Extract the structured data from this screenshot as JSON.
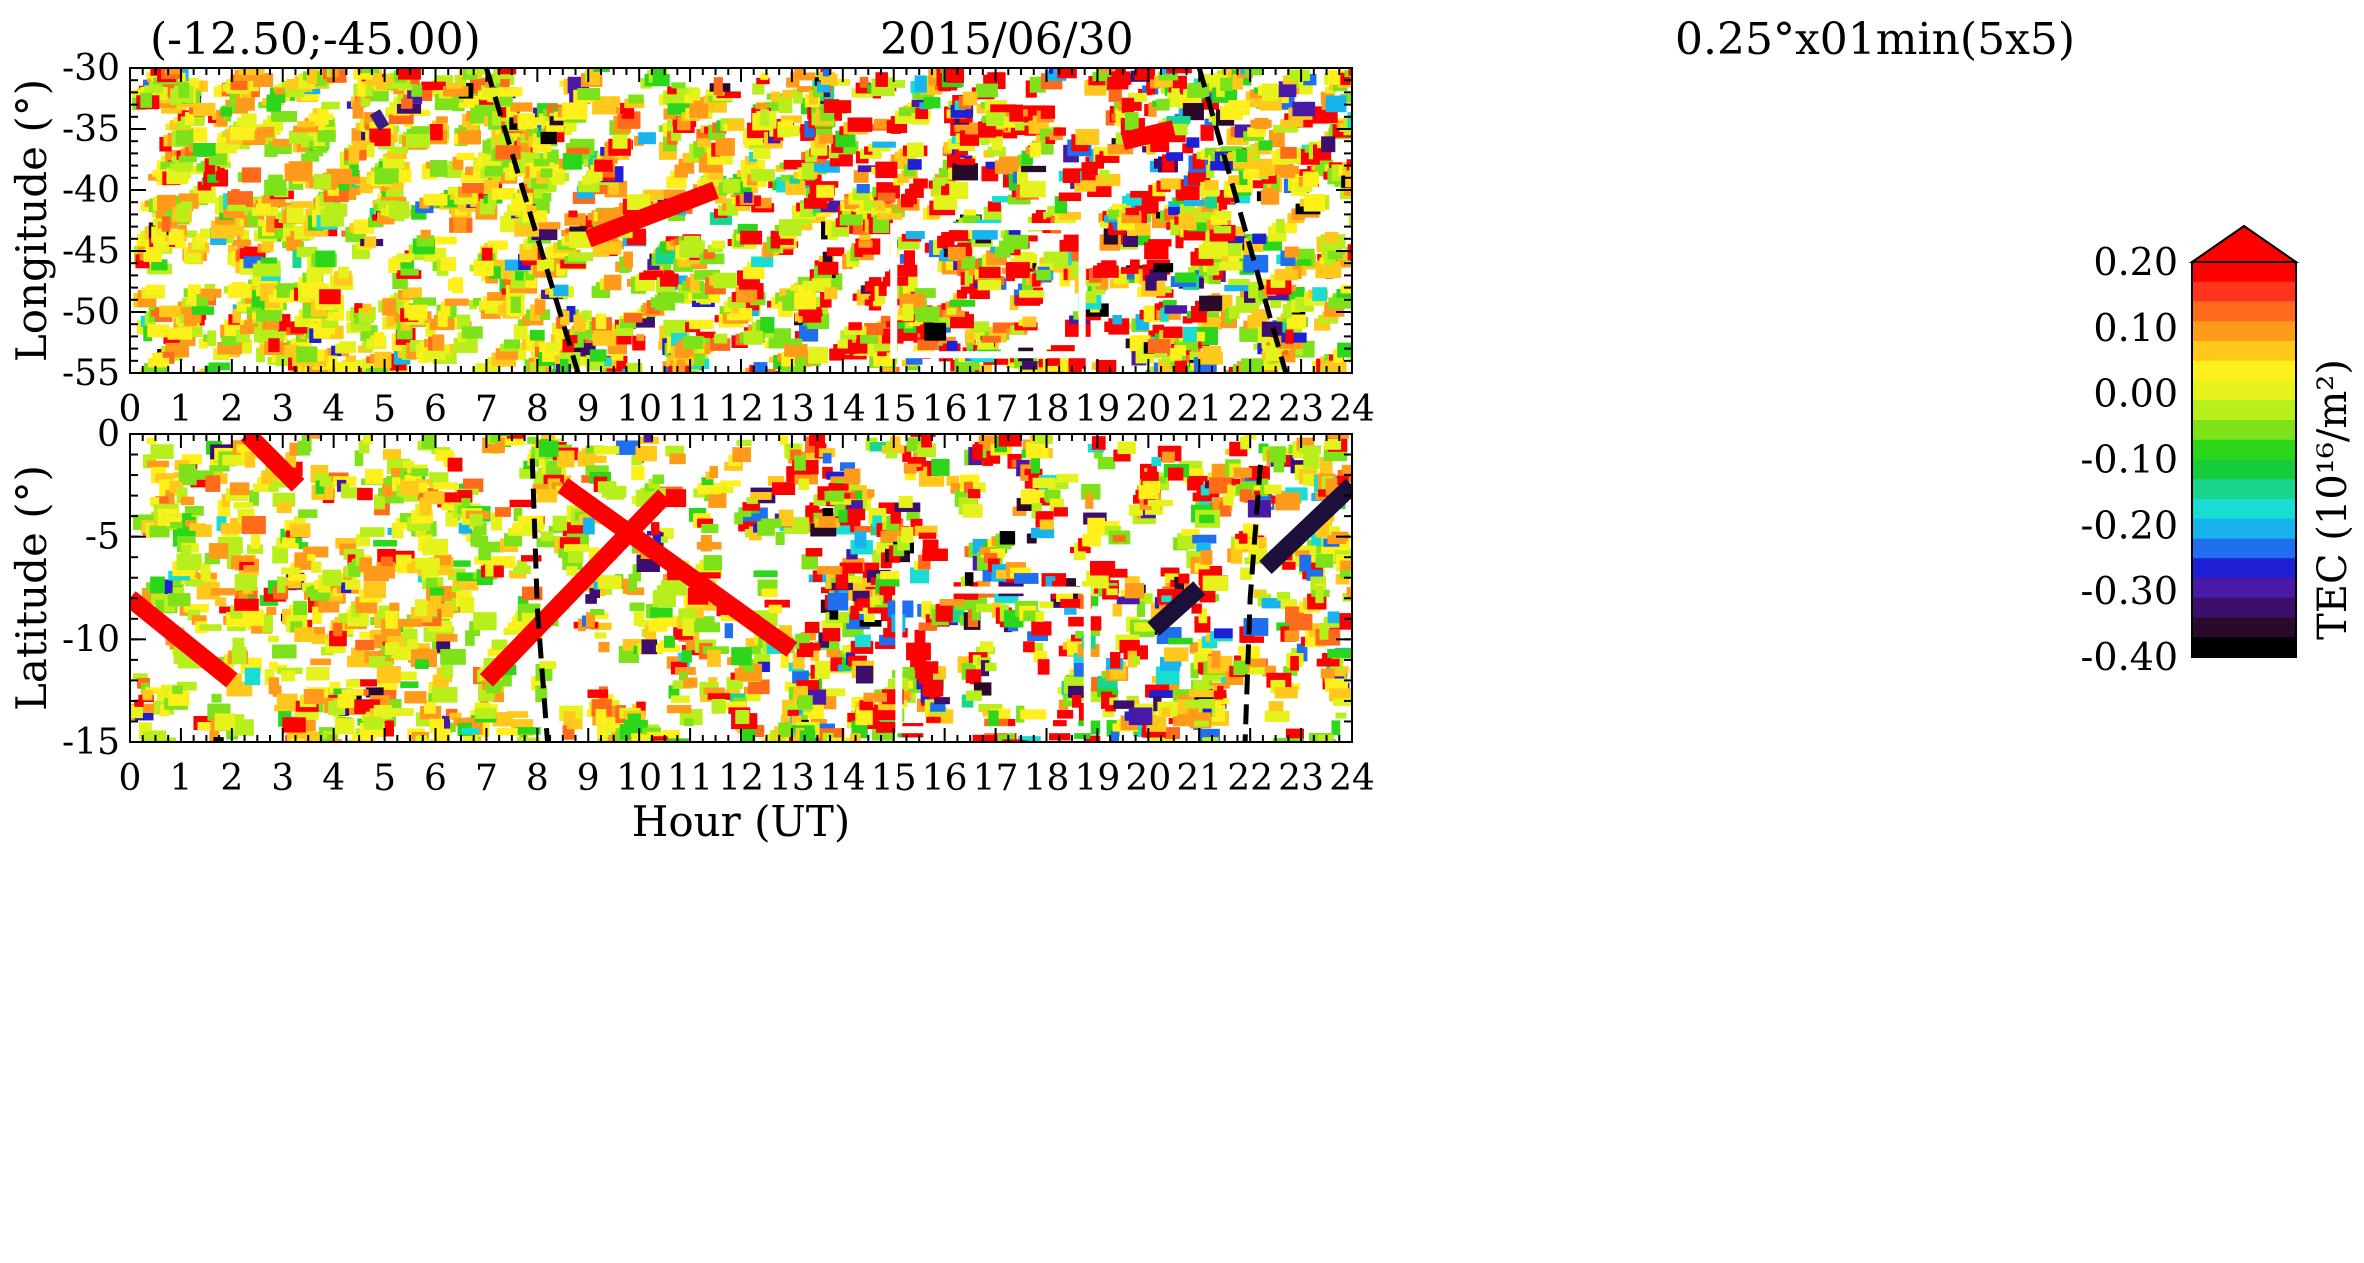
{
  "header": {
    "left": "(-12.50;-45.00)",
    "center": "2015/06/30",
    "right": "0.25°x01min(5x5)"
  },
  "chart_data": [
    {
      "type": "heatmap",
      "ylabel": "Longitude (°)",
      "xlabel": "",
      "xlim": [
        0,
        24
      ],
      "ylim": [
        -55,
        -30
      ],
      "x_ticks": [
        0,
        1,
        2,
        3,
        4,
        5,
        6,
        7,
        8,
        9,
        10,
        11,
        12,
        13,
        14,
        15,
        16,
        17,
        18,
        19,
        20,
        21,
        22,
        23,
        24
      ],
      "y_ticks": [
        -30,
        -35,
        -40,
        -45,
        -50,
        -55
      ],
      "terminator_lines": [
        [
          [
            7.0,
            -30
          ],
          [
            8.8,
            -55
          ]
        ],
        [
          [
            21.0,
            -30
          ],
          [
            22.7,
            -55
          ]
        ]
      ],
      "highlight_box": {
        "x": [
          15.0,
          18.7
        ],
        "y": [
          -53.5,
          -43.0
        ]
      },
      "prominent_features": [
        {
          "color": "#ff0000",
          "x": [
            9.0,
            11.5
          ],
          "y": [
            -44,
            -40
          ]
        },
        {
          "color": "#ff0000",
          "x": [
            19.5,
            20.5
          ],
          "y": [
            -36,
            -35
          ]
        },
        {
          "color": "#3a1c8c",
          "x": [
            4.8,
            5.0
          ],
          "y": [
            -34.5,
            -34
          ]
        }
      ]
    },
    {
      "type": "heatmap",
      "ylabel": "Latitude (°)",
      "xlabel": "Hour (UT)",
      "xlim": [
        0,
        24
      ],
      "ylim": [
        -15,
        0
      ],
      "x_ticks": [
        0,
        1,
        2,
        3,
        4,
        5,
        6,
        7,
        8,
        9,
        10,
        11,
        12,
        13,
        14,
        15,
        16,
        17,
        18,
        19,
        20,
        21,
        22,
        23,
        24
      ],
      "y_ticks": [
        0,
        -5,
        -10,
        -15
      ],
      "terminator_lines": [
        [
          [
            7.9,
            -1.2
          ],
          [
            8.0,
            -8.5
          ],
          [
            8.2,
            -15
          ]
        ],
        [
          [
            22.2,
            -1.5
          ],
          [
            22.0,
            -8.0
          ],
          [
            21.9,
            -15
          ]
        ]
      ],
      "highlight_box": {
        "x": [
          15.1,
          18.8
        ],
        "y": [
          -14.4,
          -7.6
        ]
      },
      "prominent_features": [
        {
          "color": "#ff0000",
          "x": [
            0.0,
            2.0
          ],
          "y": [
            -8.0,
            -12.0
          ]
        },
        {
          "color": "#ff0000",
          "x": [
            7.0,
            10.5
          ],
          "y": [
            -12.0,
            -3.0
          ]
        },
        {
          "color": "#ff0000",
          "x": [
            8.5,
            13.0
          ],
          "y": [
            -2.5,
            -10.5
          ]
        },
        {
          "color": "#ff0000",
          "x": [
            2.3,
            3.3
          ],
          "y": [
            0,
            -2.5
          ]
        },
        {
          "color": "#1c0f3a",
          "x": [
            22.3,
            24.0
          ],
          "y": [
            -6.5,
            -2.5
          ]
        },
        {
          "color": "#1c0f3a",
          "x": [
            20.1,
            21.0
          ],
          "y": [
            -9.5,
            -7.5
          ]
        }
      ]
    }
  ],
  "colorbar": {
    "label": "TEC (10¹⁶/m²)",
    "ticks": [
      "0.20",
      "0.10",
      "0.00",
      "-0.10",
      "-0.20",
      "-0.30",
      "-0.40"
    ],
    "range": [
      -0.4,
      0.2
    ],
    "colors": [
      "#000000",
      "#2a0a2a",
      "#3d0e6b",
      "#4a1aa6",
      "#1f1fd6",
      "#1f6fee",
      "#19b4ee",
      "#19dcd2",
      "#18d68e",
      "#17cc3c",
      "#2bd61b",
      "#7ee21b",
      "#b8ee1b",
      "#e6f21b",
      "#fff01b",
      "#ffc81b",
      "#ff9a1b",
      "#ff6a1b",
      "#ff341b",
      "#ff0000"
    ],
    "overflow_color": "#ff0000"
  }
}
